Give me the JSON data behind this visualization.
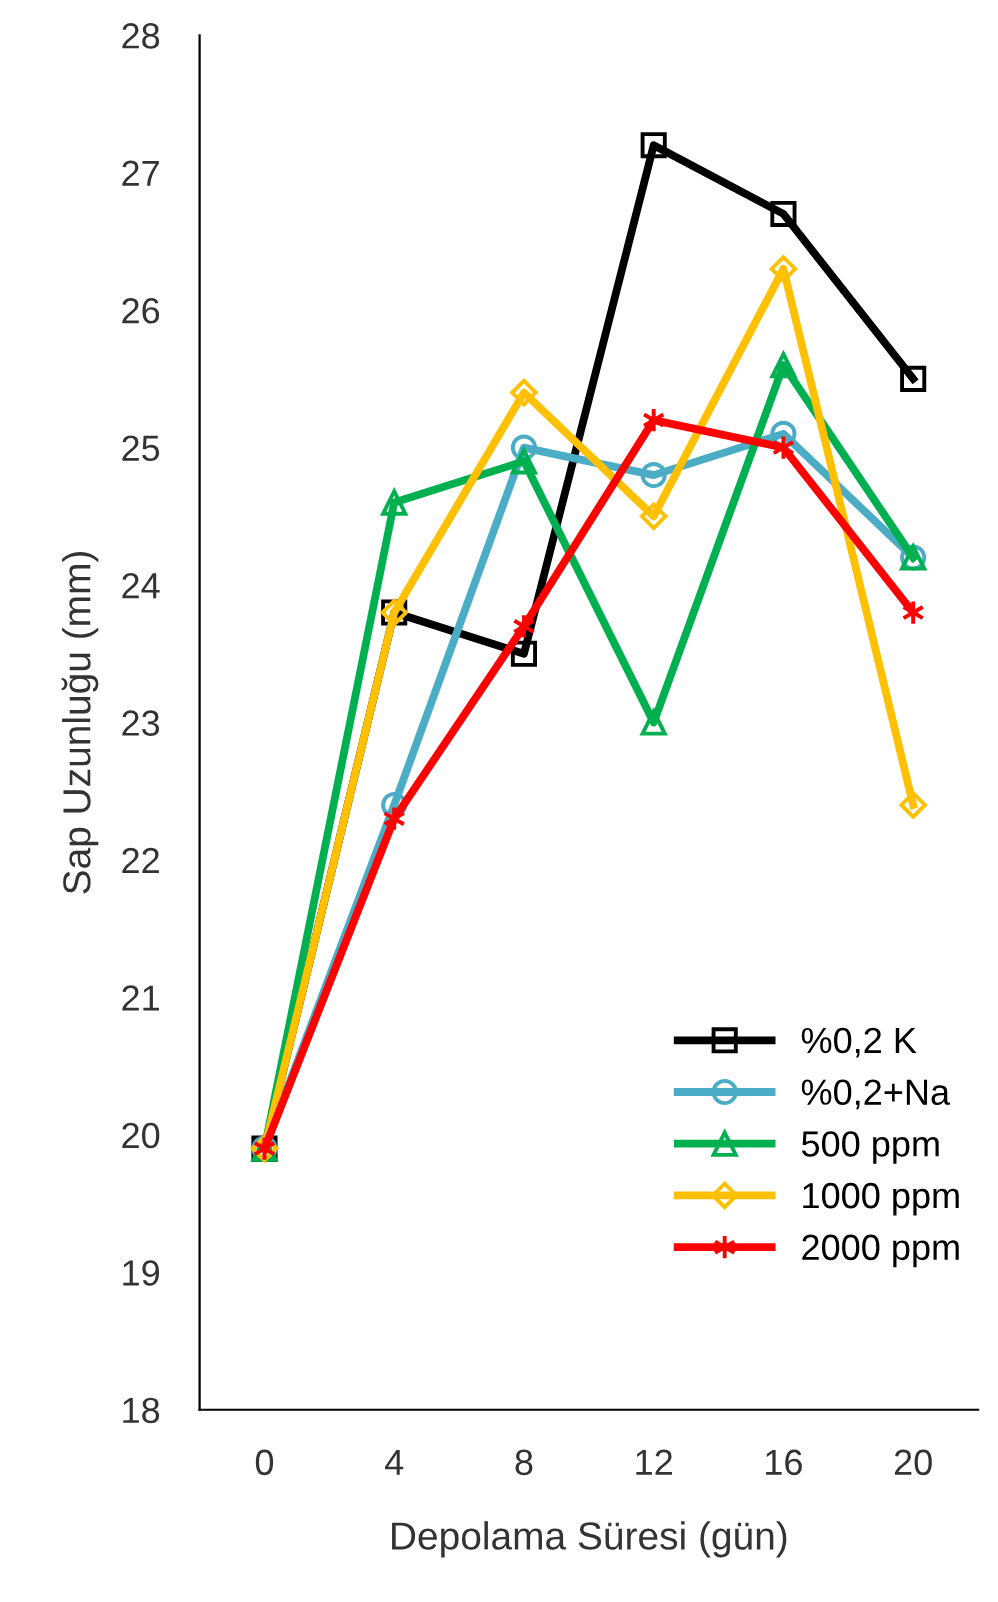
{
  "chart_data": {
    "type": "line",
    "xlabel": "Depolama Süresi (gün)",
    "ylabel": "Sap Uzunluğu (mm)",
    "categories": [
      "0",
      "4",
      "8",
      "12",
      "16",
      "20"
    ],
    "ylim": [
      18,
      28
    ],
    "yticks": [
      18,
      19,
      20,
      21,
      22,
      23,
      24,
      25,
      26,
      27,
      28
    ],
    "grid": false,
    "legend": "bottom right",
    "line_style": "solid",
    "series": [
      {
        "name": "%0,2 K",
        "color": "#000000",
        "marker": "square",
        "values": [
          19.9,
          23.8,
          23.5,
          27.2,
          26.7,
          25.5
        ]
      },
      {
        "name": "%0,2+Na",
        "color": "#4bacc6",
        "marker": "circle",
        "values": [
          19.9,
          22.4,
          25.0,
          24.8,
          25.1,
          24.2
        ]
      },
      {
        "name": "500 ppm",
        "color": "#00b050",
        "marker": "triangle",
        "values": [
          19.9,
          24.6,
          24.9,
          23.0,
          25.6,
          24.2
        ]
      },
      {
        "name": "1000 ppm",
        "color": "#ffc000",
        "marker": "diamond",
        "values": [
          19.9,
          23.8,
          25.4,
          24.5,
          26.3,
          22.4
        ]
      },
      {
        "name": "2000 ppm",
        "color": "#ff0000",
        "marker": "cross",
        "values": [
          19.9,
          22.3,
          23.7,
          25.2,
          25.0,
          23.8
        ]
      }
    ]
  }
}
